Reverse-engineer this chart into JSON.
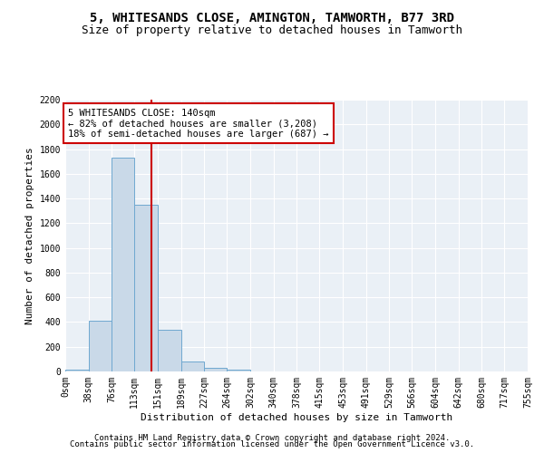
{
  "title": "5, WHITESANDS CLOSE, AMINGTON, TAMWORTH, B77 3RD",
  "subtitle": "Size of property relative to detached houses in Tamworth",
  "xlabel": "Distribution of detached houses by size in Tamworth",
  "ylabel": "Number of detached properties",
  "bar_edges": [
    0,
    38,
    76,
    113,
    151,
    189,
    227,
    264,
    302,
    340,
    378,
    415,
    453,
    491,
    529,
    566,
    604,
    642,
    680,
    717,
    755
  ],
  "bar_heights": [
    15,
    410,
    1730,
    1350,
    340,
    80,
    32,
    18,
    0,
    0,
    0,
    0,
    0,
    0,
    0,
    0,
    0,
    0,
    0,
    0
  ],
  "bar_color": "#c9d9e8",
  "bar_edgecolor": "#6fa8d0",
  "property_size": 140,
  "vline_color": "#cc0000",
  "annotation_text": "5 WHITESANDS CLOSE: 140sqm\n← 82% of detached houses are smaller (3,208)\n18% of semi-detached houses are larger (687) →",
  "annotation_boxcolor": "white",
  "annotation_boxedgecolor": "#cc0000",
  "ylim": [
    0,
    2200
  ],
  "yticks": [
    0,
    200,
    400,
    600,
    800,
    1000,
    1200,
    1400,
    1600,
    1800,
    2000,
    2200
  ],
  "tick_labels": [
    "0sqm",
    "38sqm",
    "76sqm",
    "113sqm",
    "151sqm",
    "189sqm",
    "227sqm",
    "264sqm",
    "302sqm",
    "340sqm",
    "378sqm",
    "415sqm",
    "453sqm",
    "491sqm",
    "529sqm",
    "566sqm",
    "604sqm",
    "642sqm",
    "680sqm",
    "717sqm",
    "755sqm"
  ],
  "footer1": "Contains HM Land Registry data © Crown copyright and database right 2024.",
  "footer2": "Contains public sector information licensed under the Open Government Licence v3.0.",
  "bg_color": "#eaf0f6",
  "grid_color": "white",
  "title_fontsize": 10,
  "subtitle_fontsize": 9,
  "axis_label_fontsize": 8,
  "tick_fontsize": 7,
  "footer_fontsize": 6.5,
  "annotation_fontsize": 7.5
}
